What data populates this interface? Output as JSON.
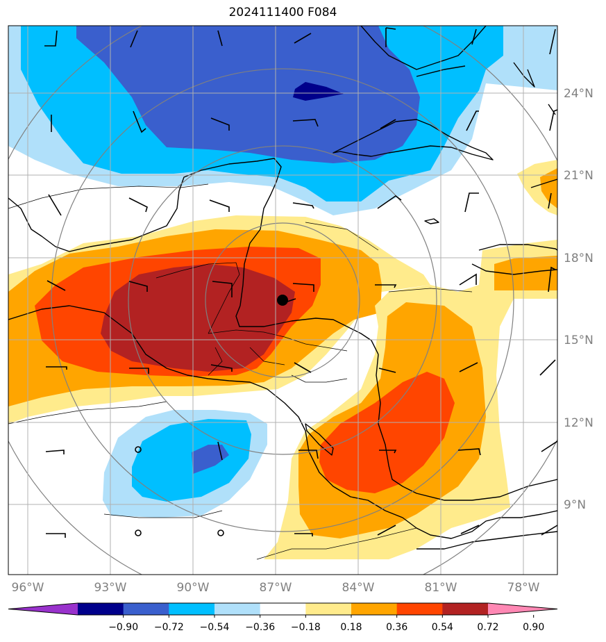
{
  "title": "2024111400 F084",
  "lat_labels": [
    "24°N",
    "21°N",
    "18°N",
    "15°N",
    "12°N",
    "9°N"
  ],
  "lon_labels": [
    "96°W",
    "93°W",
    "90°W",
    "87°W",
    "84°W",
    "81°W",
    "78°W"
  ],
  "colorbar": {
    "ticks": [
      "−0.90",
      "−0.72",
      "−0.54",
      "−0.36",
      "−0.18",
      "0.18",
      "0.36",
      "0.54",
      "0.72",
      "0.90"
    ],
    "colors": [
      "#9932cc",
      "#00008b",
      "#3a5fcd",
      "#00bfff",
      "#b0e0fa",
      "#ffffff",
      "#ffeb8c",
      "#ffa500",
      "#ff4500",
      "#b22222",
      "#ff88b4"
    ]
  },
  "colors": {
    "c_dark_navy": "#00008b",
    "c_royal": "#3a5fcd",
    "c_sky": "#00bfff",
    "c_pale_blue": "#b0e0fa",
    "c_pale_yellow": "#ffeb8c",
    "c_orange": "#ffa500",
    "c_red_orange": "#ff4500",
    "c_dark_red": "#b22222"
  },
  "storm_marker": "storm-center-dot"
}
